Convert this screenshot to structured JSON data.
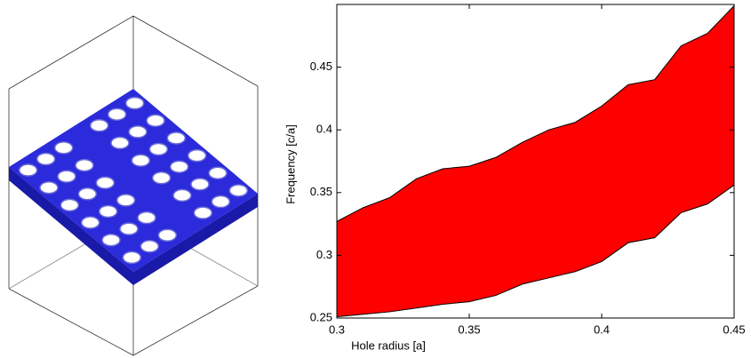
{
  "chart_data": {
    "type": "band",
    "xlabel": "Hole radius [a]",
    "ylabel": "Frequency [c/a]",
    "x": [
      0.3,
      0.31,
      0.32,
      0.33,
      0.34,
      0.35,
      0.36,
      0.37,
      0.38,
      0.39,
      0.4,
      0.41,
      0.42,
      0.43,
      0.44,
      0.45
    ],
    "upper": [
      0.327,
      0.338,
      0.346,
      0.361,
      0.369,
      0.371,
      0.378,
      0.39,
      0.4,
      0.406,
      0.419,
      0.436,
      0.44,
      0.467,
      0.477,
      0.499
    ],
    "lower": [
      0.251,
      0.253,
      0.255,
      0.258,
      0.261,
      0.263,
      0.268,
      0.277,
      0.282,
      0.287,
      0.295,
      0.31,
      0.314,
      0.334,
      0.341,
      0.356
    ],
    "color": "#ff0000",
    "xlim": [
      0.3,
      0.45
    ],
    "xticks": [
      0.3,
      0.35,
      0.4,
      0.45
    ],
    "ylim": [
      0.25,
      0.5
    ],
    "yticks": [
      0.25,
      0.3,
      0.35,
      0.4,
      0.45
    ]
  }
}
